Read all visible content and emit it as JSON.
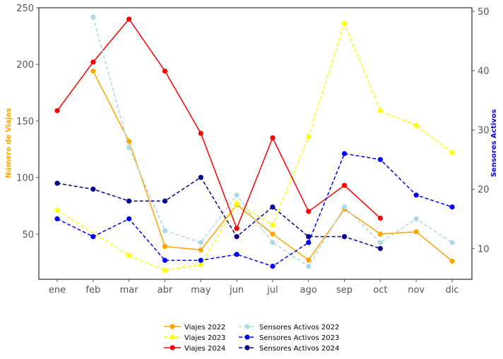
{
  "chart_data": {
    "type": "line",
    "categories": [
      "ene",
      "feb",
      "mar",
      "abr",
      "may",
      "jun",
      "jul",
      "ago",
      "sep",
      "oct",
      "nov",
      "dic"
    ],
    "left_axis": {
      "label": "Número de Viajes",
      "color": "#ffa500",
      "ylim": [
        10,
        250
      ],
      "ticks": [
        50,
        100,
        150,
        200,
        250
      ]
    },
    "right_axis": {
      "label": "Sensores Activos",
      "color": "#0000ff",
      "ylim": [
        4.8,
        50.6
      ],
      "ticks": [
        10,
        20,
        30,
        40,
        50
      ]
    },
    "series": [
      {
        "name": "Viajes 2022",
        "axis": "left",
        "color": "#ffa500",
        "dash": "solid",
        "values": [
          null,
          194,
          132,
          39,
          36,
          76,
          50,
          27,
          72,
          50,
          52,
          26
        ]
      },
      {
        "name": "Viajes 2023",
        "axis": "left",
        "color": "#ffff00",
        "dash": "dashed",
        "values": [
          71,
          null,
          31,
          18,
          23,
          77,
          58,
          136,
          236,
          159,
          146,
          122
        ]
      },
      {
        "name": "Viajes 2024",
        "axis": "left",
        "color": "#ff0000",
        "dash": "solid",
        "values": [
          159,
          202,
          240,
          194,
          139,
          55,
          135,
          70,
          93,
          64,
          null,
          null
        ]
      },
      {
        "name": "Sensores Activos 2022",
        "axis": "right",
        "color": "#add8e6",
        "dash": "dashed",
        "values": [
          null,
          49,
          27,
          13,
          11,
          19,
          11,
          7,
          17,
          11,
          15,
          11
        ]
      },
      {
        "name": "Sensores Activos 2023",
        "axis": "right",
        "color": "#0000ff",
        "dash": "dashed",
        "values": [
          15,
          12,
          15,
          8,
          8,
          9,
          7,
          11,
          26,
          25,
          19,
          17
        ]
      },
      {
        "name": "Sensores Activos 2024",
        "axis": "right",
        "color": "#00008b",
        "dash": "dashed",
        "values": [
          21,
          20,
          18,
          18,
          22,
          12,
          17,
          12,
          12,
          10,
          null,
          null
        ]
      }
    ],
    "legend": {
      "position": "bottom-center",
      "columns": 2
    },
    "grid": false
  }
}
